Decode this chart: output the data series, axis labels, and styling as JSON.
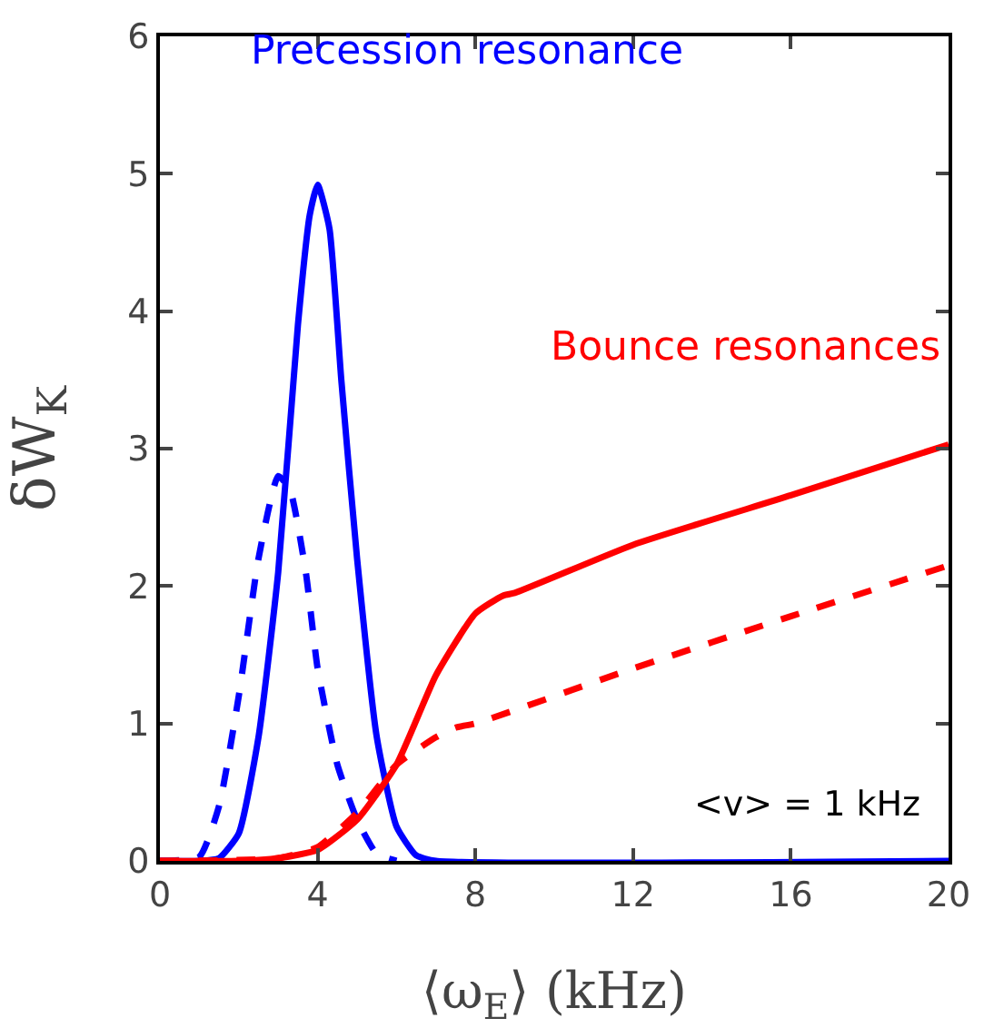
{
  "chart_data": {
    "type": "line",
    "xlabel": "⟨ω$_{E}$⟩ (kHz)",
    "ylabel": "δW$_{K}$",
    "xlim": [
      0,
      20
    ],
    "xticks": [
      0,
      4,
      8,
      12,
      16,
      20
    ],
    "ylim": [
      0,
      6
    ],
    "yticks": [
      0,
      1,
      2,
      3,
      4,
      5,
      6
    ],
    "grid": false,
    "legend": false,
    "marker": "none",
    "series": [
      {
        "color": "#0000ff",
        "line_style": "solid",
        "x": [
          0,
          1,
          1.5,
          2,
          2.5,
          3,
          3.5,
          3.8,
          4,
          4.3,
          4.6,
          5,
          5.5,
          6,
          6.5,
          7,
          20
        ],
        "values": [
          0,
          0,
          0.02,
          0.2,
          0.9,
          2.1,
          3.9,
          4.7,
          4.92,
          4.6,
          3.5,
          2.2,
          0.9,
          0.25,
          0.04,
          0,
          0
        ]
      },
      {
        "color": "#0000ff",
        "line_style": "dashed",
        "x": [
          0,
          1,
          1.5,
          2,
          2.5,
          3,
          3.3,
          3.7,
          4,
          4.5,
          5,
          5.5,
          6
        ],
        "values": [
          0,
          0.03,
          0.4,
          1.2,
          2.2,
          2.8,
          2.7,
          2.1,
          1.4,
          0.7,
          0.3,
          0.05,
          0
        ]
      },
      {
        "color": "#ff0000",
        "line_style": "solid",
        "x": [
          0,
          2,
          3,
          4,
          5,
          6,
          7,
          8,
          8.7,
          9,
          12,
          16,
          20
        ],
        "values": [
          0,
          0,
          0.02,
          0.08,
          0.3,
          0.7,
          1.35,
          1.8,
          1.93,
          1.95,
          2.3,
          2.66,
          3.03
        ]
      },
      {
        "color": "#ff0000",
        "line_style": "dashed",
        "x": [
          0,
          3,
          4,
          5,
          6,
          7,
          7.5,
          8,
          12,
          16,
          20
        ],
        "values": [
          0,
          0.02,
          0.1,
          0.35,
          0.7,
          0.9,
          0.97,
          1.0,
          1.4,
          1.78,
          2.15
        ]
      }
    ],
    "annotations": [
      "Precession resonance",
      "Bounce resonances",
      "<v> = 1 kHz"
    ]
  }
}
